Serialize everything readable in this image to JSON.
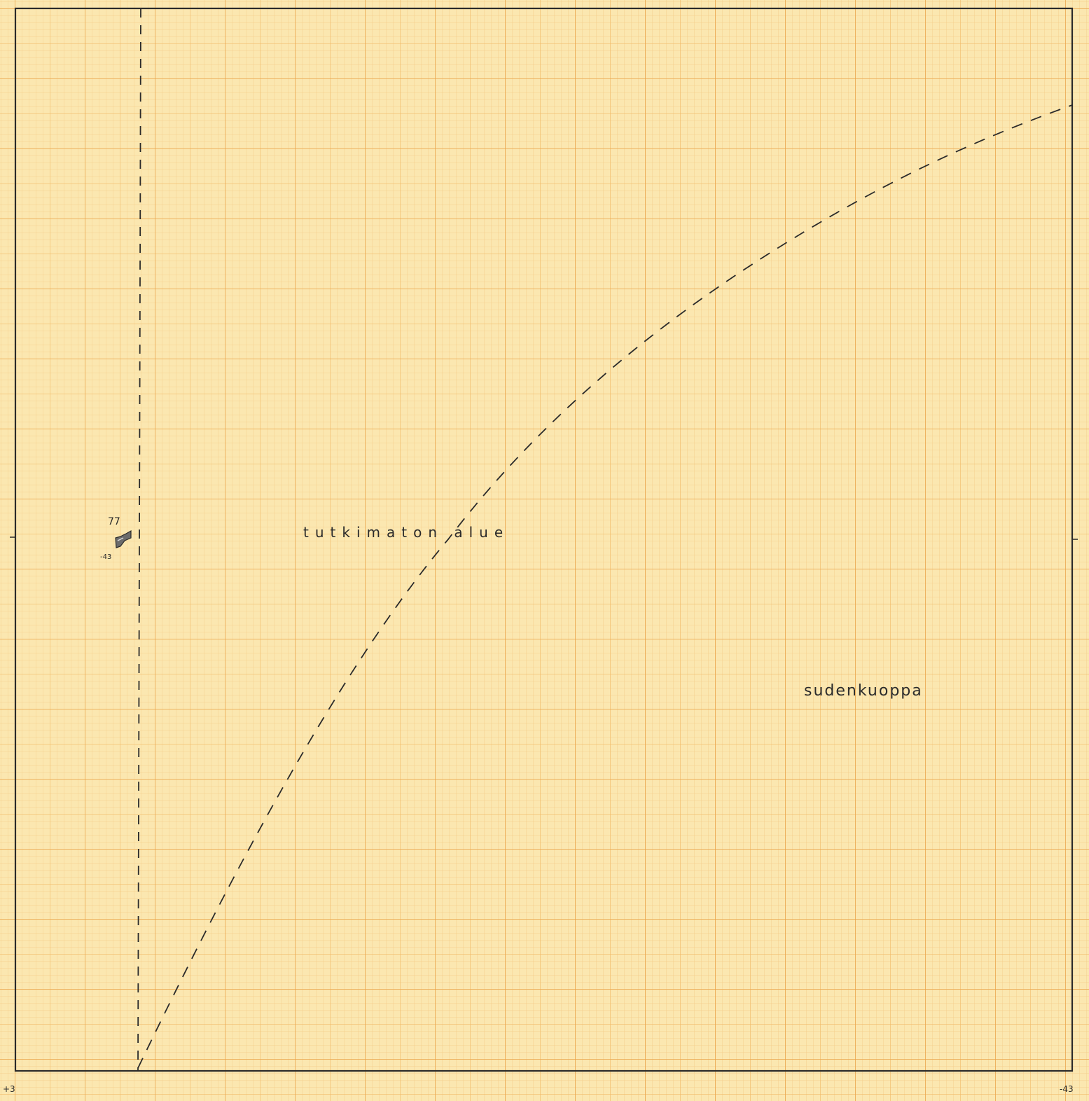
{
  "labels": {
    "unexplored_area": "tutkimaton alue",
    "pit": "sudenkuoppa",
    "find_number": "77",
    "find_depth": "-43",
    "corner_bottom_left": "+3",
    "corner_bottom_right": "-43"
  },
  "colors": {
    "paper": "#fbe7b0",
    "grid": "#e8a046",
    "ink": "#2b2b2b"
  },
  "icons": {
    "find_marker": "artifact-find-icon"
  }
}
